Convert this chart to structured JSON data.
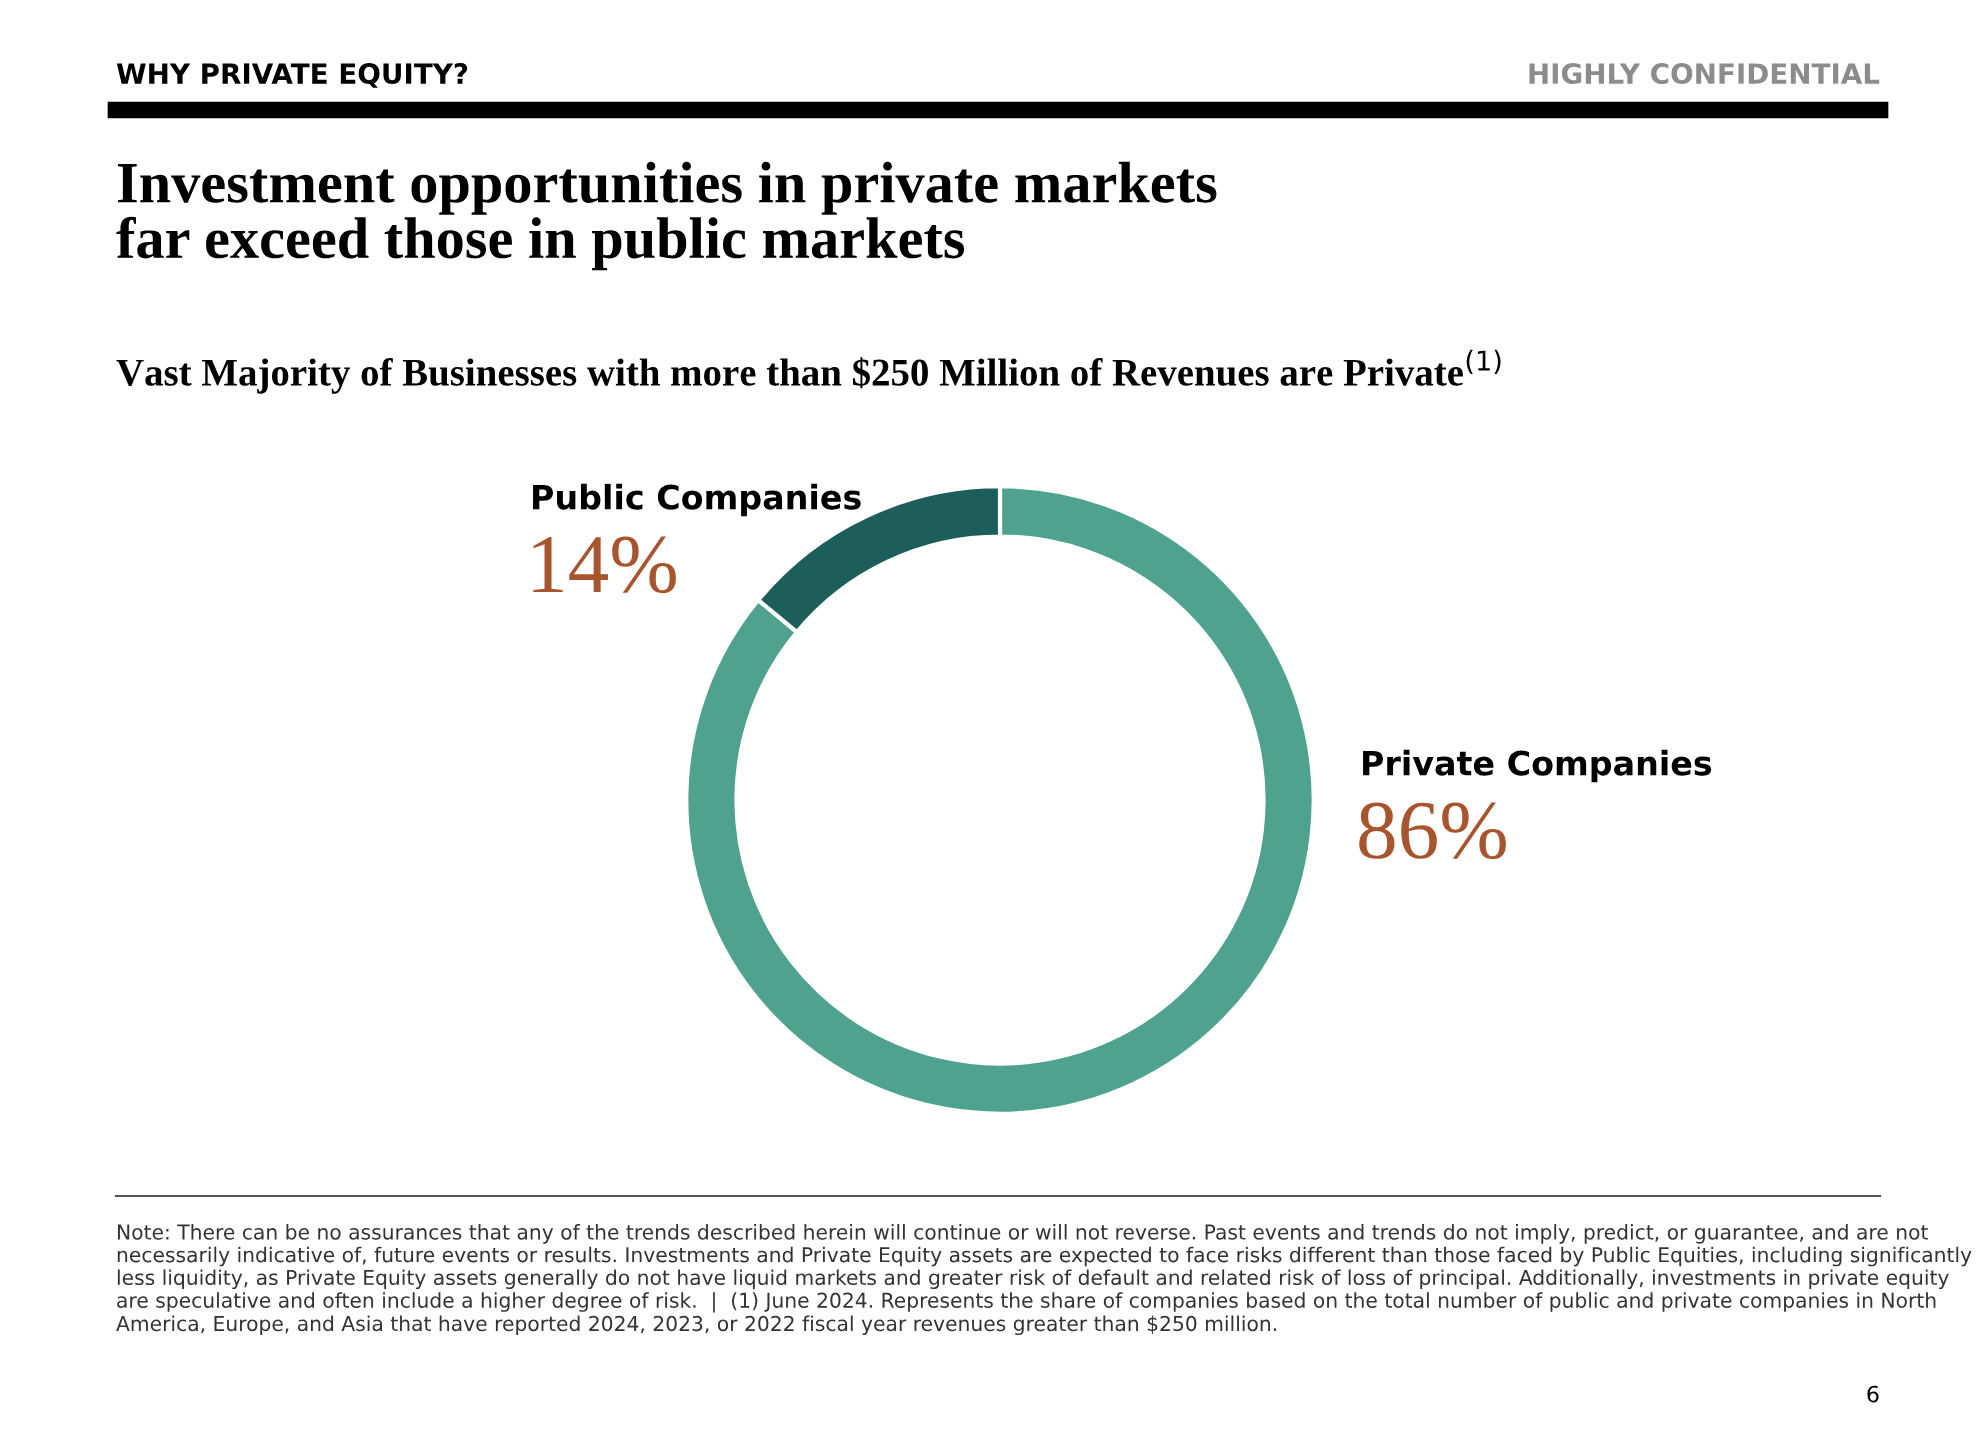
{
  "chart_data": {
    "type": "donut",
    "title": "Investment opportunities in private markets\nfar exceed those in public markets",
    "subtitle": "Vast Majority of Businesses with more than $250 Million of Revenues are Private$^{(1)}$",
    "categories": [
      "Private Companies",
      "Public Companies"
    ],
    "values": [
      86,
      14
    ],
    "colors": [
      "#4fa38e",
      "#1d5e5b"
    ],
    "value_labels": [
      "86%",
      "14%"
    ],
    "annotations": [
      "WHY PRIVATE EQUITY?",
      "HIGHLY CONFIDENTIAL",
      "Note: There can be no assurances that any of the trends described herein will continue or will not reverse. Past events and trends do not imply, predict, or guarantee, and are not necessarily indicative of, future events or results. Investments and Private Equity assets are expected to face risks different than those faced by Public Equities, including significantly less liquidity, as Private Equity assets generally do not have liquid markets and greater risk of default and related risk of loss of principal. Additionally, investments in private equity are speculative and often include a higher degree of risk.  |  (1) June 2024. Represents the share of companies based on the total number of public and private companies in North America, Europe, and Asia that have reported 2024, 2023, or 2022 fiscal year revenues greater than $250 million.",
      "6"
    ]
  }
}
